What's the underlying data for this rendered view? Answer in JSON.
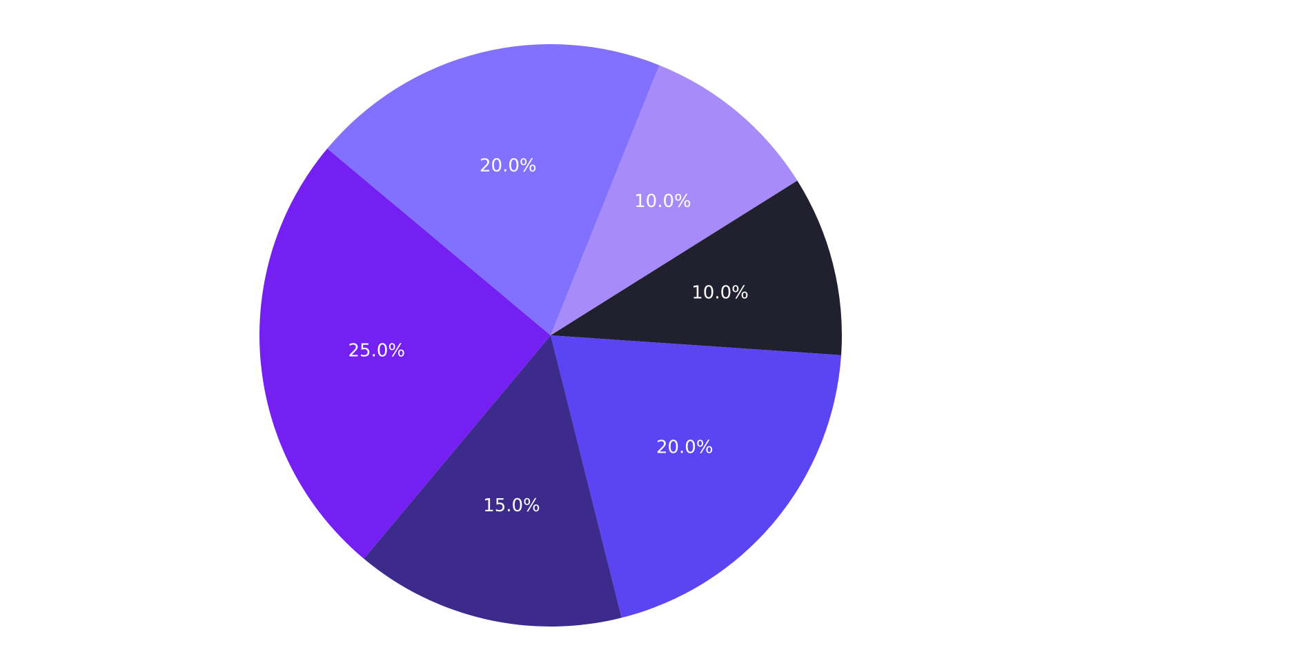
{
  "chart_data": {
    "type": "pie",
    "title": "",
    "start_angle_deg_cw_from_top": 21.9,
    "direction": "clockwise",
    "slices": [
      {
        "value": 10.0,
        "label": "10.0%",
        "color": "#a78bfa"
      },
      {
        "value": 10.0,
        "label": "10.0%",
        "color": "#20202e"
      },
      {
        "value": 20.0,
        "label": "20.0%",
        "color": "#5b44f2"
      },
      {
        "value": 15.0,
        "label": "15.0%",
        "color": "#3d2b8c"
      },
      {
        "value": 25.0,
        "label": "25.0%",
        "color": "#7520f2"
      },
      {
        "value": 20.0,
        "label": "20.0%",
        "color": "#8270ff"
      }
    ],
    "legend": null,
    "label_color": "#ffffff"
  }
}
